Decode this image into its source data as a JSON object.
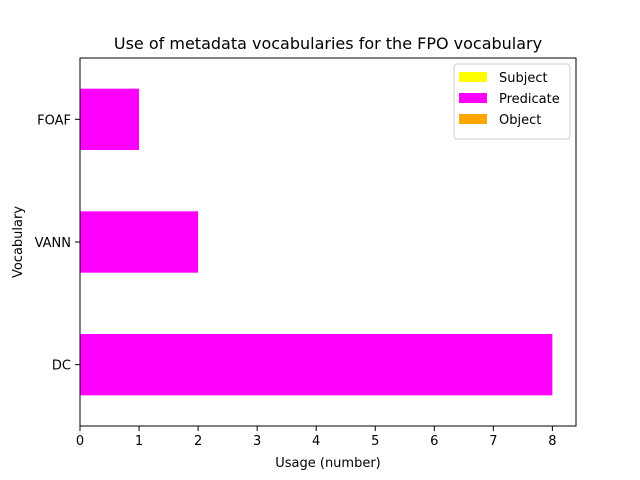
{
  "chart_data": {
    "type": "bar",
    "orientation": "horizontal",
    "stacked": true,
    "title": "Use of metadata vocabularies for the FPO vocabulary",
    "xlabel": "Usage (number)",
    "ylabel": "Vocabulary",
    "categories": [
      "DC",
      "VANN",
      "FOAF"
    ],
    "series": [
      {
        "name": "Subject",
        "color": "#ffff00",
        "values": [
          0,
          0,
          0
        ]
      },
      {
        "name": "Predicate",
        "color": "#ff00ff",
        "values": [
          8,
          2,
          1
        ]
      },
      {
        "name": "Object",
        "color": "#ffa500",
        "values": [
          0,
          0,
          0
        ]
      }
    ],
    "xlim": [
      0,
      8.4
    ],
    "xticks": [
      "0",
      "1",
      "2",
      "3",
      "4",
      "5",
      "6",
      "7",
      "8"
    ],
    "grid": false,
    "legend_position": "top-right"
  }
}
